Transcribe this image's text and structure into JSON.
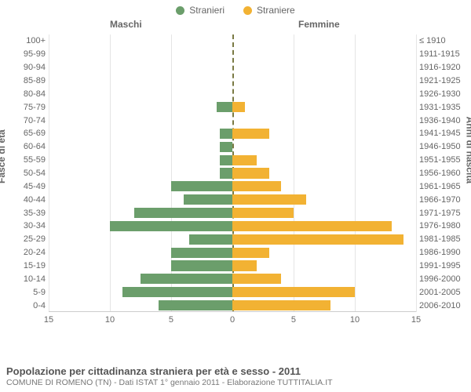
{
  "legend": {
    "male": {
      "label": "Stranieri",
      "color": "#6b9e6b"
    },
    "female": {
      "label": "Straniere",
      "color": "#f2b233"
    }
  },
  "headers": {
    "male": "Maschi",
    "female": "Femmine"
  },
  "axis_titles": {
    "left": "Fasce di età",
    "right": "Anni di nascita"
  },
  "x_axis": {
    "max": 15,
    "ticks": [
      15,
      10,
      5,
      0,
      5,
      10,
      15
    ],
    "grid_color": "#e5e5e5",
    "center_color": "#7a7a44",
    "baseline_color": "#cccccc"
  },
  "rows": [
    {
      "age": "100+",
      "birth": "≤ 1910",
      "m": 0,
      "f": 0
    },
    {
      "age": "95-99",
      "birth": "1911-1915",
      "m": 0,
      "f": 0
    },
    {
      "age": "90-94",
      "birth": "1916-1920",
      "m": 0,
      "f": 0
    },
    {
      "age": "85-89",
      "birth": "1921-1925",
      "m": 0,
      "f": 0
    },
    {
      "age": "80-84",
      "birth": "1926-1930",
      "m": 0,
      "f": 0
    },
    {
      "age": "75-79",
      "birth": "1931-1935",
      "m": 1.3,
      "f": 1
    },
    {
      "age": "70-74",
      "birth": "1936-1940",
      "m": 0,
      "f": 0
    },
    {
      "age": "65-69",
      "birth": "1941-1945",
      "m": 1,
      "f": 3
    },
    {
      "age": "60-64",
      "birth": "1946-1950",
      "m": 1,
      "f": 0
    },
    {
      "age": "55-59",
      "birth": "1951-1955",
      "m": 1,
      "f": 2
    },
    {
      "age": "50-54",
      "birth": "1956-1960",
      "m": 1,
      "f": 3
    },
    {
      "age": "45-49",
      "birth": "1961-1965",
      "m": 5,
      "f": 4
    },
    {
      "age": "40-44",
      "birth": "1966-1970",
      "m": 4,
      "f": 6
    },
    {
      "age": "35-39",
      "birth": "1971-1975",
      "m": 8,
      "f": 5
    },
    {
      "age": "30-34",
      "birth": "1976-1980",
      "m": 10,
      "f": 13
    },
    {
      "age": "25-29",
      "birth": "1981-1985",
      "m": 3.5,
      "f": 14
    },
    {
      "age": "20-24",
      "birth": "1986-1990",
      "m": 5,
      "f": 3
    },
    {
      "age": "15-19",
      "birth": "1991-1995",
      "m": 5,
      "f": 2
    },
    {
      "age": "10-14",
      "birth": "1996-2000",
      "m": 7.5,
      "f": 4
    },
    {
      "age": "5-9",
      "birth": "2001-2005",
      "m": 9,
      "f": 10
    },
    {
      "age": "0-4",
      "birth": "2006-2010",
      "m": 6,
      "f": 8
    }
  ],
  "caption": {
    "title": "Popolazione per cittadinanza straniera per età e sesso - 2011",
    "sub": "COMUNE DI ROMENO (TN) - Dati ISTAT 1° gennaio 2011 - Elaborazione TUTTITALIA.IT"
  },
  "style": {
    "bg": "#ffffff",
    "label_fontsize": 11,
    "header_fontsize": 12
  }
}
